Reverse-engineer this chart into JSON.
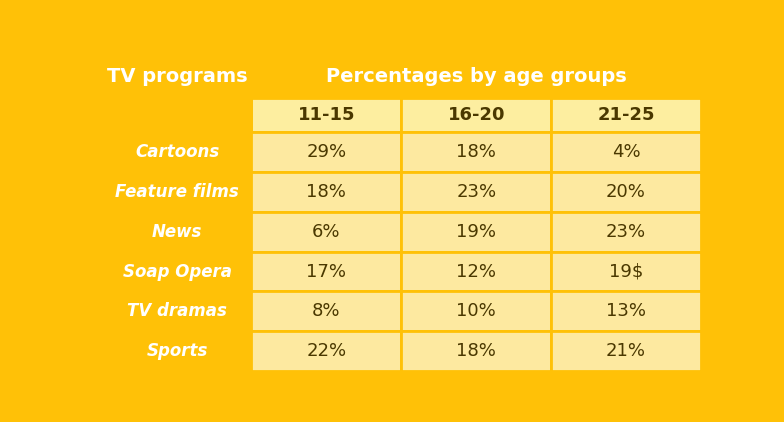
{
  "header_col": "TV programs",
  "header_row": "Percentages by age groups",
  "age_groups": [
    "11-15",
    "16-20",
    "21-25"
  ],
  "programs": [
    "Cartoons",
    "Feature films",
    "News",
    "Soap Opera",
    "TV dramas",
    "Sports"
  ],
  "values": [
    [
      "29%",
      "18%",
      "4%"
    ],
    [
      "18%",
      "23%",
      "20%"
    ],
    [
      "6%",
      "19%",
      "23%"
    ],
    [
      "17%",
      "12%",
      "19$"
    ],
    [
      "8%",
      "10%",
      "13%"
    ],
    [
      "22%",
      "18%",
      "21%"
    ]
  ],
  "color_gold": "#FFC107",
  "color_age_header_bg": "#FDEEA0",
  "color_data_cell_bg": "#FDE9A0",
  "color_white_text": "#FFFFFF",
  "color_dark_text": "#4A3800",
  "border_color": "#FFC107",
  "fig_bg": "#FFC107"
}
